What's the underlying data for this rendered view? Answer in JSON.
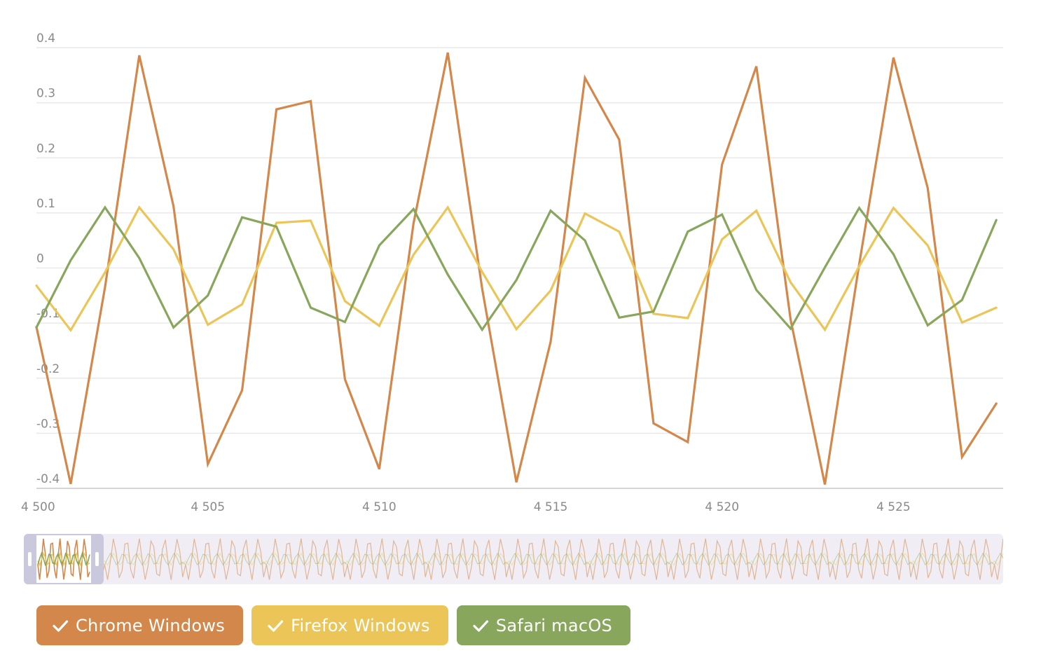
{
  "chart_data": {
    "type": "line",
    "title": "",
    "xlabel": "",
    "ylabel": "",
    "x": [
      4500,
      4501,
      4502,
      4503,
      4504,
      4505,
      4506,
      4507,
      4508,
      4509,
      4510,
      4511,
      4512,
      4513,
      4514,
      4515,
      4516,
      4517,
      4518,
      4519,
      4520,
      4521,
      4522,
      4523,
      4524,
      4525,
      4526,
      4527,
      4528
    ],
    "xlim": [
      4500,
      4528.2
    ],
    "ylim": [
      -0.4,
      0.4
    ],
    "y_ticks": [
      0.4,
      0.3,
      0.2,
      0.1,
      0,
      -0.1,
      -0.2,
      -0.3,
      -0.4
    ],
    "y_tick_labels": [
      "0.4",
      "0.3",
      "0.2",
      "0.1",
      "0",
      "-0.1",
      "-0.2",
      "-0.3",
      "-0.4"
    ],
    "x_ticks": [
      4500,
      4505,
      4510,
      4515,
      4520,
      4525
    ],
    "x_tick_labels": [
      "4 500",
      "4 505",
      "4 510",
      "4 515",
      "4 520",
      "4 525"
    ],
    "grid": true,
    "legend_position": "bottom-left",
    "series": [
      {
        "name": "Chrome Windows",
        "color": "#d4874a",
        "values": [
          -0.107,
          -0.392,
          -0.035,
          0.386,
          0.112,
          -0.356,
          -0.222,
          0.288,
          0.303,
          -0.202,
          -0.365,
          0.081,
          0.391,
          -0.037,
          -0.389,
          -0.134,
          0.345,
          0.233,
          -0.282,
          -0.316,
          0.188,
          0.366,
          -0.094,
          -0.393,
          0.007,
          0.382,
          0.145,
          -0.343,
          -0.246
        ]
      },
      {
        "name": "Firefox Windows",
        "color": "#ecc558",
        "values": [
          -0.032,
          -0.113,
          -0.008,
          0.11,
          0.034,
          -0.103,
          -0.066,
          0.082,
          0.086,
          -0.06,
          -0.105,
          0.024,
          0.11,
          -0.007,
          -0.111,
          -0.041,
          0.099,
          0.066,
          -0.083,
          -0.091,
          0.052,
          0.104,
          -0.026,
          -0.112,
          0.003,
          0.109,
          0.041,
          -0.099,
          -0.072
        ]
      },
      {
        "name": "Safari macOS",
        "color": "#88a65c",
        "values": [
          -0.108,
          0.014,
          0.11,
          0.018,
          -0.108,
          -0.05,
          0.092,
          0.075,
          -0.072,
          -0.098,
          0.041,
          0.107,
          -0.012,
          -0.112,
          -0.022,
          0.104,
          0.05,
          -0.09,
          -0.079,
          0.066,
          0.097,
          -0.04,
          -0.11,
          0.001,
          0.109,
          0.025,
          -0.104,
          -0.058,
          0.087
        ]
      }
    ]
  },
  "navigator": {
    "selected_range": [
      4500,
      4528
    ],
    "full_range": [
      4500,
      4840
    ]
  },
  "legend": {
    "items": [
      {
        "label": "Chrome Windows",
        "color": "#d4874a",
        "checked": true
      },
      {
        "label": "Firefox Windows",
        "color": "#ecc558",
        "checked": true
      },
      {
        "label": "Safari macOS",
        "color": "#88a65c",
        "checked": true
      }
    ]
  }
}
